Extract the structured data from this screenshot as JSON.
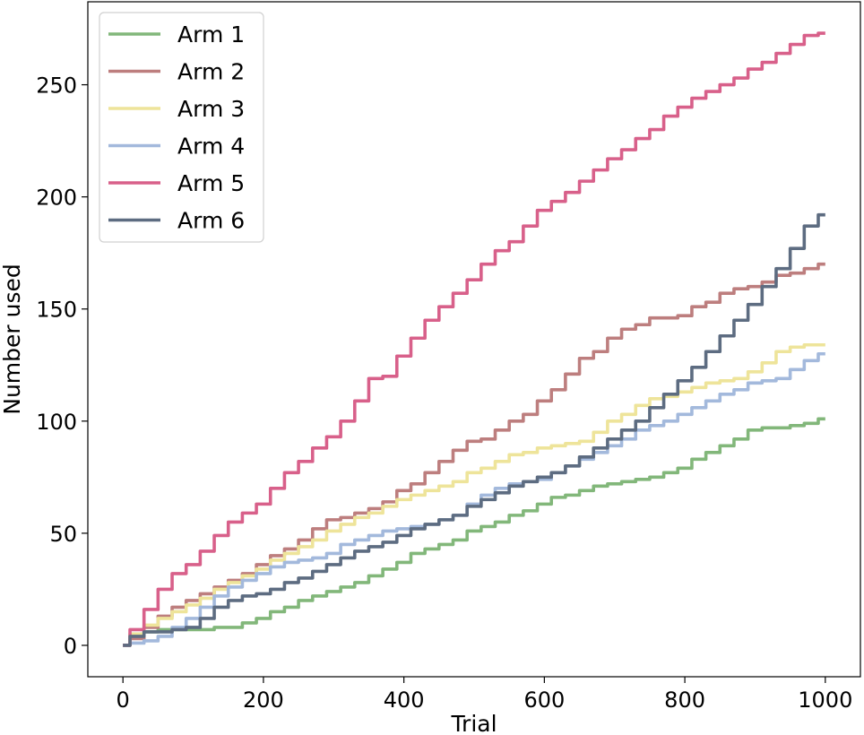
{
  "chart_data": {
    "type": "line",
    "xlabel": "Trial",
    "ylabel": "Number used",
    "xlim": [
      -50,
      1050
    ],
    "ylim": [
      -14,
      287
    ],
    "xticks": [
      0,
      200,
      400,
      600,
      800,
      1000
    ],
    "yticks": [
      0,
      50,
      100,
      150,
      200,
      250
    ],
    "grid": false,
    "legend_position": "top-left",
    "series": [
      {
        "name": "Arm 1",
        "color": "#82b77a",
        "x": [
          0,
          20,
          40,
          60,
          80,
          100,
          120,
          140,
          160,
          180,
          200,
          220,
          240,
          260,
          280,
          300,
          320,
          340,
          360,
          380,
          400,
          420,
          440,
          460,
          480,
          500,
          520,
          540,
          560,
          580,
          600,
          620,
          640,
          660,
          680,
          700,
          720,
          740,
          760,
          780,
          800,
          820,
          840,
          860,
          880,
          900,
          920,
          940,
          960,
          980,
          1000
        ],
        "values": [
          0,
          5,
          6,
          7,
          7,
          7,
          7,
          8,
          8,
          10,
          12,
          15,
          17,
          20,
          22,
          24,
          26,
          28,
          31,
          34,
          37,
          41,
          43,
          45,
          47,
          51,
          53,
          55,
          58,
          60,
          63,
          66,
          67,
          69,
          71,
          72,
          73,
          74,
          75,
          77,
          79,
          83,
          86,
          89,
          92,
          96,
          97,
          97,
          98,
          99,
          101
        ]
      },
      {
        "name": "Arm 2",
        "color": "#bd7e7e",
        "x": [
          0,
          20,
          40,
          60,
          80,
          100,
          120,
          140,
          160,
          180,
          200,
          220,
          240,
          260,
          280,
          300,
          320,
          340,
          360,
          380,
          400,
          420,
          440,
          460,
          480,
          500,
          520,
          540,
          560,
          580,
          600,
          620,
          640,
          660,
          680,
          700,
          720,
          740,
          760,
          780,
          800,
          820,
          840,
          860,
          880,
          900,
          920,
          940,
          960,
          980,
          1000
        ],
        "values": [
          0,
          3,
          8,
          13,
          17,
          20,
          23,
          26,
          29,
          32,
          36,
          40,
          43,
          47,
          52,
          56,
          57,
          59,
          61,
          64,
          69,
          72,
          77,
          82,
          87,
          91,
          92,
          96,
          100,
          103,
          109,
          114,
          121,
          128,
          131,
          137,
          141,
          143,
          146,
          146,
          147,
          151,
          153,
          157,
          159,
          160,
          162,
          165,
          166,
          168,
          170
        ]
      },
      {
        "name": "Arm 3",
        "color": "#eee49a",
        "x": [
          0,
          20,
          40,
          60,
          80,
          100,
          120,
          140,
          160,
          180,
          200,
          220,
          240,
          260,
          280,
          300,
          320,
          340,
          360,
          380,
          400,
          420,
          440,
          460,
          480,
          500,
          520,
          540,
          560,
          580,
          600,
          620,
          640,
          660,
          680,
          700,
          720,
          740,
          760,
          780,
          800,
          820,
          840,
          860,
          880,
          900,
          920,
          940,
          960,
          980,
          1000
        ],
        "values": [
          0,
          5,
          9,
          12,
          15,
          18,
          21,
          25,
          28,
          31,
          34,
          38,
          41,
          44,
          47,
          51,
          54,
          57,
          59,
          62,
          65,
          67,
          69,
          71,
          73,
          77,
          79,
          82,
          85,
          86,
          88,
          89,
          90,
          91,
          95,
          100,
          103,
          107,
          110,
          111,
          113,
          115,
          117,
          118,
          119,
          122,
          126,
          131,
          133,
          134,
          134
        ]
      },
      {
        "name": "Arm 4",
        "color": "#a3b9dc",
        "x": [
          0,
          20,
          40,
          60,
          80,
          100,
          120,
          140,
          160,
          180,
          200,
          220,
          240,
          260,
          280,
          300,
          320,
          340,
          360,
          380,
          400,
          420,
          440,
          460,
          480,
          500,
          520,
          540,
          560,
          580,
          600,
          620,
          640,
          660,
          680,
          700,
          720,
          740,
          760,
          780,
          800,
          820,
          840,
          860,
          880,
          900,
          920,
          940,
          960,
          980,
          1000
        ],
        "values": [
          0,
          1,
          2,
          4,
          8,
          12,
          17,
          22,
          26,
          29,
          32,
          35,
          37,
          38,
          39,
          41,
          45,
          47,
          49,
          51,
          52,
          53,
          54,
          56,
          58,
          63,
          67,
          70,
          72,
          73,
          74,
          77,
          80,
          83,
          86,
          89,
          92,
          96,
          98,
          100,
          103,
          106,
          109,
          112,
          114,
          117,
          118,
          119,
          123,
          127,
          130
        ]
      },
      {
        "name": "Arm 5",
        "color": "#d8608a",
        "x": [
          0,
          20,
          40,
          60,
          80,
          100,
          120,
          140,
          160,
          180,
          200,
          220,
          240,
          260,
          280,
          300,
          320,
          340,
          360,
          380,
          400,
          420,
          440,
          460,
          480,
          500,
          520,
          540,
          560,
          580,
          600,
          620,
          640,
          660,
          680,
          700,
          720,
          740,
          760,
          780,
          800,
          820,
          840,
          860,
          880,
          900,
          920,
          940,
          960,
          980,
          1000
        ],
        "values": [
          0,
          7,
          16,
          25,
          32,
          36,
          42,
          49,
          55,
          59,
          63,
          70,
          77,
          82,
          88,
          93,
          100,
          109,
          119,
          120,
          129,
          137,
          145,
          151,
          157,
          163,
          170,
          176,
          180,
          187,
          194,
          198,
          202,
          207,
          212,
          217,
          221,
          226,
          230,
          236,
          240,
          244,
          247,
          250,
          253,
          257,
          260,
          264,
          268,
          272,
          273
        ]
      },
      {
        "name": "Arm 6",
        "color": "#5d6c81",
        "x": [
          0,
          20,
          40,
          60,
          80,
          100,
          120,
          140,
          160,
          180,
          200,
          220,
          240,
          260,
          280,
          300,
          320,
          340,
          360,
          380,
          400,
          420,
          440,
          460,
          480,
          500,
          520,
          540,
          560,
          580,
          600,
          620,
          640,
          660,
          680,
          700,
          720,
          740,
          760,
          780,
          800,
          820,
          840,
          860,
          880,
          900,
          920,
          940,
          960,
          980,
          1000
        ],
        "values": [
          0,
          4,
          6,
          6,
          7,
          8,
          12,
          17,
          20,
          22,
          23,
          25,
          28,
          30,
          33,
          36,
          39,
          42,
          44,
          46,
          49,
          52,
          54,
          56,
          58,
          62,
          65,
          68,
          71,
          73,
          75,
          77,
          80,
          84,
          88,
          92,
          96,
          100,
          106,
          112,
          118,
          124,
          131,
          138,
          145,
          152,
          160,
          168,
          177,
          187,
          192
        ]
      }
    ]
  }
}
